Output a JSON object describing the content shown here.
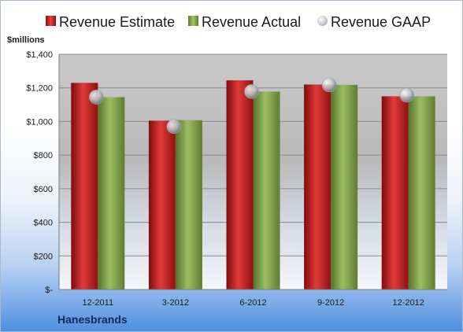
{
  "legend": {
    "estimate": "Revenue Estimate",
    "actual": "Revenue Actual",
    "gaap": "Revenue GAAP"
  },
  "unit_label": "$millions",
  "company": "Hanesbrands",
  "colors": {
    "estimate": "#d42a2a",
    "actual": "#8fb155",
    "gaap": "#c8ccd4"
  },
  "chart_data": {
    "type": "bar",
    "categories": [
      "12-2011",
      "3-2012",
      "6-2012",
      "9-2012",
      "12-2012"
    ],
    "series": [
      {
        "name": "Revenue Estimate",
        "values": [
          1230,
          1005,
          1245,
          1220,
          1150
        ]
      },
      {
        "name": "Revenue Actual",
        "values": [
          1145,
          1008,
          1178,
          1218,
          1150
        ]
      },
      {
        "name": "Revenue GAAP",
        "type": "scatter",
        "values": [
          1145,
          970,
          1178,
          1218,
          1157
        ]
      }
    ],
    "ylabel": "$millions",
    "ylim": [
      0,
      1400
    ],
    "yticks": [
      0,
      200,
      400,
      600,
      800,
      1000,
      1200,
      1400
    ],
    "ytick_labels": [
      "$-",
      "$200",
      "$400",
      "$600",
      "$800",
      "$1,000",
      "$1,200",
      "$1,400"
    ],
    "grid": true,
    "legend_position": "top"
  }
}
